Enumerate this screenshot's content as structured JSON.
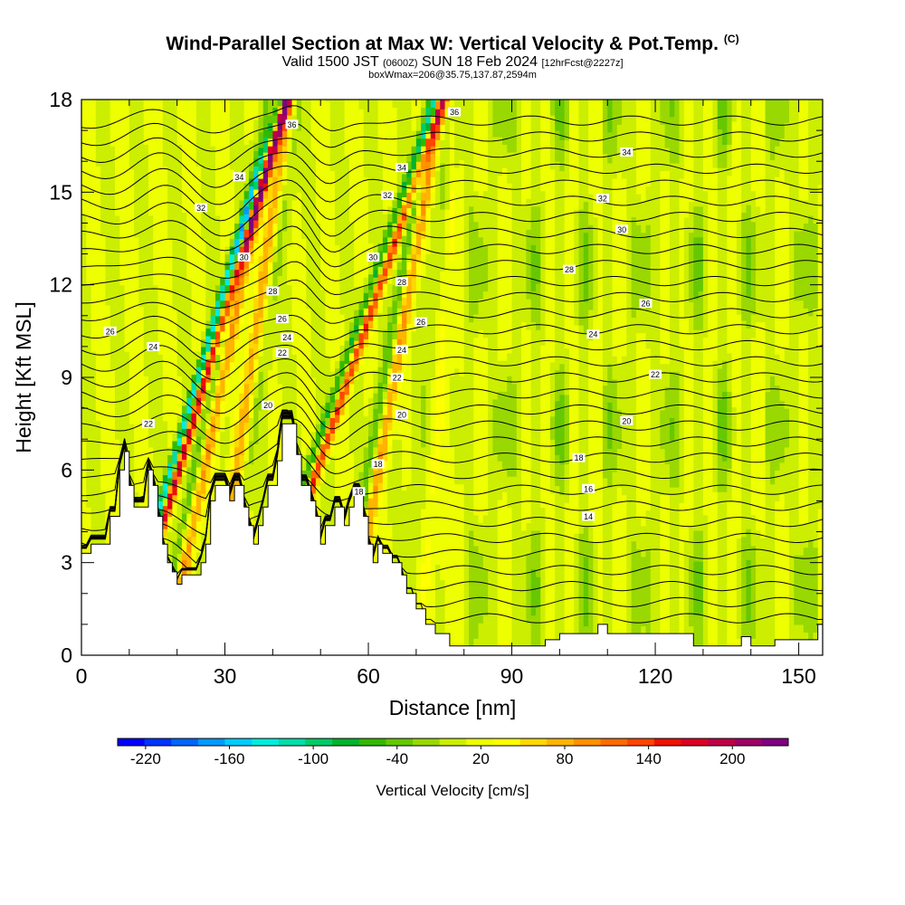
{
  "chart_data": {
    "type": "heatmap",
    "title": "Wind-Parallel Section at Max W: Vertical Velocity & Pot.Temp.",
    "title_mark": "(C)",
    "subtitle_parts": [
      "Valid 1500 JST ",
      "(0600Z)",
      " SUN 18 Feb 2024 ",
      "[12hrFcst@2227z]"
    ],
    "boxline": "boxWmax=206@35.75,137.87,2594m",
    "xlabel": "Distance [nm]",
    "ylabel": "Height [Kft MSL]",
    "xlim": [
      0,
      155
    ],
    "ylim": [
      0,
      18
    ],
    "x_ticks": [
      "0",
      "30",
      "60",
      "90",
      "120",
      "150"
    ],
    "x_tick_values": [
      0,
      30,
      60,
      90,
      120,
      150
    ],
    "y_ticks": [
      "0",
      "3",
      "6",
      "9",
      "12",
      "15",
      "18"
    ],
    "y_tick_values": [
      0,
      3,
      6,
      9,
      12,
      15,
      18
    ],
    "colorbar": {
      "label": "Vertical Velocity [cm/s]",
      "tick_labels": [
        "-220",
        "-160",
        "-100",
        "-40",
        "20",
        "80",
        "140",
        "200"
      ],
      "tick_values": [
        -220,
        -160,
        -100,
        -40,
        20,
        80,
        140,
        200
      ],
      "range": [
        -240,
        240
      ],
      "colors": [
        "#0000ff",
        "#0033ff",
        "#0066ff",
        "#0099ff",
        "#00ccff",
        "#00eedd",
        "#00ddaa",
        "#00cc66",
        "#00b32d",
        "#33b800",
        "#66c800",
        "#99d800",
        "#ccee00",
        "#eeff00",
        "#ffff00",
        "#ffd700",
        "#ffb400",
        "#ff9000",
        "#ff6a00",
        "#ff4400",
        "#ee1100",
        "#dd0022",
        "#c00044",
        "#a00066",
        "#800080"
      ]
    },
    "terrain_kft": [
      [
        0,
        3.3
      ],
      [
        2,
        3.3
      ],
      [
        2,
        3.6
      ],
      [
        6,
        3.6
      ],
      [
        6,
        4.5
      ],
      [
        8,
        4.5
      ],
      [
        8,
        6
      ],
      [
        9,
        6
      ],
      [
        9,
        6.6
      ],
      [
        10,
        6.6
      ],
      [
        10,
        5.5
      ],
      [
        11,
        5.5
      ],
      [
        11,
        4.8
      ],
      [
        14,
        4.8
      ],
      [
        14,
        6
      ],
      [
        15,
        6
      ],
      [
        15,
        5.5
      ],
      [
        16,
        5.5
      ],
      [
        16,
        4.5
      ],
      [
        17,
        4.5
      ],
      [
        17,
        3.6
      ],
      [
        18,
        3.6
      ],
      [
        18,
        3
      ],
      [
        19,
        3
      ],
      [
        19,
        2.7
      ],
      [
        20,
        2.7
      ],
      [
        20,
        2.3
      ],
      [
        21,
        2.3
      ],
      [
        21,
        2.6
      ],
      [
        25,
        2.6
      ],
      [
        25,
        3
      ],
      [
        26,
        3
      ],
      [
        26,
        3.6
      ],
      [
        27,
        3.6
      ],
      [
        27,
        5
      ],
      [
        28,
        5
      ],
      [
        28,
        5.5
      ],
      [
        31,
        5.5
      ],
      [
        31,
        5
      ],
      [
        32,
        5
      ],
      [
        32,
        5.5
      ],
      [
        34,
        5.5
      ],
      [
        34,
        4.8
      ],
      [
        35,
        4.8
      ],
      [
        35,
        4.2
      ],
      [
        36,
        4.2
      ],
      [
        36,
        3.6
      ],
      [
        37,
        3.6
      ],
      [
        37,
        4.2
      ],
      [
        38,
        4.2
      ],
      [
        38,
        4.8
      ],
      [
        39,
        4.8
      ],
      [
        39,
        5.5
      ],
      [
        41,
        5.5
      ],
      [
        41,
        6.3
      ],
      [
        42,
        6.3
      ],
      [
        42,
        7.5
      ],
      [
        45,
        7.5
      ],
      [
        45,
        6.5
      ],
      [
        46,
        6.5
      ],
      [
        46,
        5.5
      ],
      [
        48,
        5.5
      ],
      [
        48,
        5
      ],
      [
        49,
        5
      ],
      [
        49,
        4.5
      ],
      [
        50,
        4.5
      ],
      [
        50,
        3.6
      ],
      [
        51,
        3.6
      ],
      [
        51,
        4.2
      ],
      [
        53,
        4.2
      ],
      [
        53,
        4.8
      ],
      [
        55,
        4.8
      ],
      [
        55,
        4.2
      ],
      [
        56,
        4.2
      ],
      [
        56,
        4.8
      ],
      [
        57,
        4.8
      ],
      [
        57,
        5.2
      ],
      [
        59,
        5.2
      ],
      [
        59,
        4.5
      ],
      [
        60,
        4.5
      ],
      [
        60,
        3.6
      ],
      [
        61,
        3.6
      ],
      [
        61,
        3
      ],
      [
        62,
        3
      ],
      [
        62,
        3.6
      ],
      [
        63,
        3.6
      ],
      [
        63,
        3.3
      ],
      [
        65,
        3.3
      ],
      [
        65,
        3
      ],
      [
        67,
        3
      ],
      [
        67,
        2.6
      ],
      [
        68,
        2.6
      ],
      [
        68,
        2
      ],
      [
        70,
        2
      ],
      [
        70,
        1.5
      ],
      [
        72,
        1.5
      ],
      [
        72,
        1
      ],
      [
        74,
        1
      ],
      [
        74,
        0.7
      ],
      [
        77,
        0.7
      ],
      [
        77,
        0.3
      ],
      [
        97,
        0.3
      ],
      [
        97,
        0.5
      ],
      [
        100,
        0.5
      ],
      [
        100,
        0.7
      ],
      [
        108,
        0.7
      ],
      [
        108,
        1
      ],
      [
        110,
        1
      ],
      [
        110,
        0.7
      ],
      [
        128,
        0.7
      ],
      [
        128,
        0.3
      ],
      [
        138,
        0.3
      ],
      [
        138,
        0.6
      ],
      [
        140,
        0.6
      ],
      [
        140,
        0.3
      ],
      [
        145,
        0.3
      ],
      [
        145,
        0.5
      ],
      [
        154,
        0.5
      ],
      [
        154,
        1
      ],
      [
        155,
        1
      ]
    ],
    "contour_labels": [
      {
        "text": "36",
        "x": 78,
        "y": 17.6
      },
      {
        "text": "36",
        "x": 44,
        "y": 17.2
      },
      {
        "text": "34",
        "x": 67,
        "y": 15.8
      },
      {
        "text": "34",
        "x": 114,
        "y": 16.3
      },
      {
        "text": "34",
        "x": 33,
        "y": 15.5
      },
      {
        "text": "32",
        "x": 64,
        "y": 14.9
      },
      {
        "text": "32",
        "x": 109,
        "y": 14.8
      },
      {
        "text": "32",
        "x": 25,
        "y": 14.5
      },
      {
        "text": "30",
        "x": 34,
        "y": 12.9
      },
      {
        "text": "30",
        "x": 61,
        "y": 12.9
      },
      {
        "text": "30",
        "x": 113,
        "y": 13.8
      },
      {
        "text": "28",
        "x": 102,
        "y": 12.5
      },
      {
        "text": "28",
        "x": 67,
        "y": 12.1
      },
      {
        "text": "28",
        "x": 40,
        "y": 11.8
      },
      {
        "text": "26",
        "x": 6,
        "y": 10.5
      },
      {
        "text": "26",
        "x": 71,
        "y": 10.8
      },
      {
        "text": "26",
        "x": 118,
        "y": 11.4
      },
      {
        "text": "26",
        "x": 42,
        "y": 10.9
      },
      {
        "text": "24",
        "x": 15,
        "y": 10
      },
      {
        "text": "24",
        "x": 43,
        "y": 10.3
      },
      {
        "text": "24",
        "x": 67,
        "y": 9.9
      },
      {
        "text": "24",
        "x": 107,
        "y": 10.4
      },
      {
        "text": "22",
        "x": 42,
        "y": 9.8
      },
      {
        "text": "22",
        "x": 66,
        "y": 9
      },
      {
        "text": "22",
        "x": 120,
        "y": 9.1
      },
      {
        "text": "20",
        "x": 39,
        "y": 8.1
      },
      {
        "text": "20",
        "x": 67,
        "y": 7.8
      },
      {
        "text": "20",
        "x": 114,
        "y": 7.6
      },
      {
        "text": "22",
        "x": 14,
        "y": 7.5
      },
      {
        "text": "18",
        "x": 62,
        "y": 6.2
      },
      {
        "text": "18",
        "x": 104,
        "y": 6.4
      },
      {
        "text": "18",
        "x": 58,
        "y": 5.3
      },
      {
        "text": "16",
        "x": 106,
        "y": 5.4
      },
      {
        "text": "14",
        "x": 106,
        "y": 4.5
      }
    ]
  }
}
